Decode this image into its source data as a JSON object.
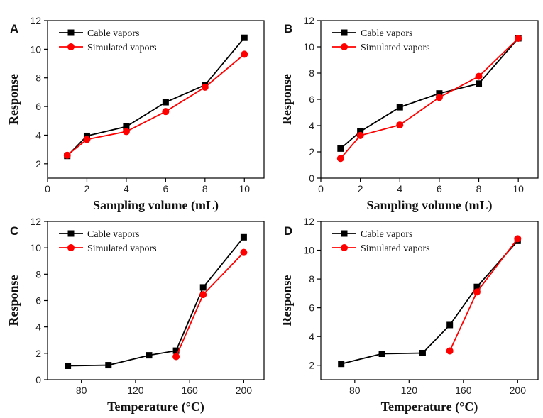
{
  "chart_data": [
    {
      "panel": "A",
      "type": "line",
      "xlabel": "Sampling volume (mL)",
      "ylabel": "Response",
      "xlim": [
        0,
        11
      ],
      "ylim": [
        1,
        12
      ],
      "xticks": [
        0,
        2,
        4,
        6,
        8,
        10
      ],
      "yticks": [
        2,
        4,
        6,
        8,
        10,
        12
      ],
      "legend": "top-left",
      "series": [
        {
          "name": "Cable vapors",
          "color": "#000000",
          "marker": "square",
          "x": [
            1,
            2,
            4,
            6,
            8,
            10
          ],
          "y": [
            2.55,
            3.95,
            4.6,
            6.3,
            7.5,
            10.8
          ]
        },
        {
          "name": "Simulated vapors",
          "color": "#ff0000",
          "marker": "circle",
          "x": [
            1,
            2,
            4,
            6,
            8,
            10
          ],
          "y": [
            2.6,
            3.7,
            4.25,
            5.65,
            7.35,
            9.65
          ]
        }
      ]
    },
    {
      "panel": "B",
      "type": "line",
      "xlabel": "Sampling volume (mL)",
      "ylabel": "Response",
      "xlim": [
        0,
        11
      ],
      "ylim": [
        0,
        12
      ],
      "xticks": [
        0,
        2,
        4,
        6,
        8,
        10
      ],
      "yticks": [
        0,
        2,
        4,
        6,
        8,
        10,
        12
      ],
      "legend": "top-left",
      "series": [
        {
          "name": "Cable vapors",
          "color": "#000000",
          "marker": "square",
          "x": [
            1,
            2,
            4,
            6,
            8,
            10
          ],
          "y": [
            2.25,
            3.55,
            5.4,
            6.45,
            7.2,
            10.65
          ]
        },
        {
          "name": "Simulated vapors",
          "color": "#ff0000",
          "marker": "circle",
          "x": [
            1,
            2,
            4,
            6,
            8,
            10
          ],
          "y": [
            1.5,
            3.25,
            4.05,
            6.15,
            7.75,
            10.65
          ]
        }
      ]
    },
    {
      "panel": "C",
      "type": "line",
      "xlabel": "Temperature (°C)",
      "ylabel": "Response",
      "xlim": [
        55,
        215
      ],
      "ylim": [
        0,
        12
      ],
      "xticks": [
        80,
        120,
        160,
        200
      ],
      "yticks": [
        0,
        2,
        4,
        6,
        8,
        10,
        12
      ],
      "legend": "top-left",
      "series": [
        {
          "name": "Cable vapors",
          "color": "#000000",
          "marker": "square",
          "x": [
            70,
            100,
            130,
            150,
            170,
            200
          ],
          "y": [
            1.05,
            1.1,
            1.85,
            2.2,
            7.0,
            10.8
          ]
        },
        {
          "name": "Simulated vapors",
          "color": "#ff0000",
          "marker": "circle",
          "x": [
            150,
            170,
            200
          ],
          "y": [
            1.75,
            6.45,
            9.65
          ]
        }
      ]
    },
    {
      "panel": "D",
      "type": "line",
      "xlabel": "Temperature (°C)",
      "ylabel": "Response",
      "xlim": [
        55,
        215
      ],
      "ylim": [
        1,
        12
      ],
      "xticks": [
        80,
        120,
        160,
        200
      ],
      "yticks": [
        2,
        4,
        6,
        8,
        10,
        12
      ],
      "legend": "top-left",
      "series": [
        {
          "name": "Cable vapors",
          "color": "#000000",
          "marker": "square",
          "x": [
            70,
            100,
            130,
            150,
            170,
            200
          ],
          "y": [
            2.1,
            2.8,
            2.85,
            4.8,
            7.45,
            10.65
          ]
        },
        {
          "name": "Simulated vapors",
          "color": "#ff0000",
          "marker": "circle",
          "x": [
            150,
            170,
            200
          ],
          "y": [
            3.0,
            7.1,
            10.8
          ]
        }
      ]
    }
  ]
}
